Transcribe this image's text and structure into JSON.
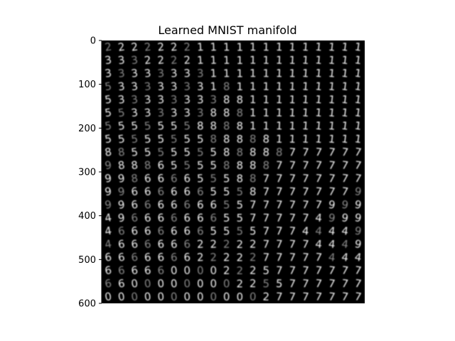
{
  "chart_data": {
    "type": "heatmap",
    "title": "Learned MNIST manifold",
    "xlabel": "",
    "ylabel": "",
    "ylim": [
      600,
      0
    ],
    "yticks": [
      0,
      100,
      200,
      300,
      400,
      500,
      600
    ],
    "xticks": [],
    "grid": false,
    "colormap": "gray",
    "grid_rows": 20,
    "grid_cols": 20,
    "digit_rows": [
      "22222221111111111111",
      "33322221111111111111",
      "33333333111111111111",
      "53333333181111111111",
      "53333333388111111111",
      "55333333888111111111",
      "55555558888111111111",
      "55555555888881111111",
      "88555555588888777777",
      "98886555588887777777",
      "99866665558877777777",
      "99666666555877777779",
      "99666666655777777999",
      "49666666655777774999",
      "46666666555577744449",
      "46666662222277774449",
      "66666662222277777444",
      "66666000022257777777",
      "66000000002255777777",
      "00000000000027777777"
    ]
  },
  "colors": {
    "background": "#000000",
    "stroke_bright": "#f2f2f2",
    "stroke_dim": "#8a8a8a",
    "axis": "#000000"
  }
}
